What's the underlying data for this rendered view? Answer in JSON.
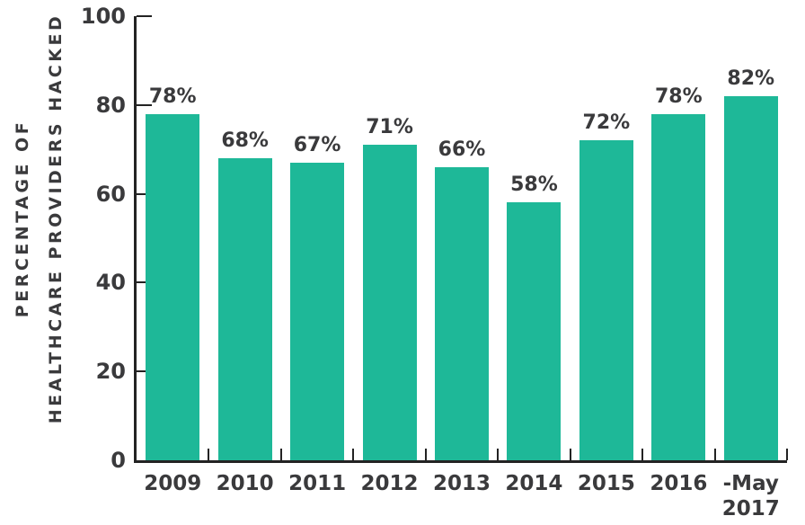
{
  "chart_data": {
    "type": "bar",
    "title": "",
    "ylabel_line1": "PERCENTAGE OF",
    "ylabel_line2": "HEALTHCARE PROVIDERS HACKED",
    "xlabel": "",
    "categories": [
      "2009",
      "2010",
      "2011",
      "2012",
      "2013",
      "2014",
      "2015",
      "2016",
      "-May\n2017"
    ],
    "values": [
      78,
      68,
      67,
      71,
      66,
      58,
      72,
      78,
      82
    ],
    "bar_labels": [
      "78%",
      "68%",
      "67%",
      "71%",
      "66%",
      "58%",
      "72%",
      "78%",
      "82%"
    ],
    "ylim": [
      0,
      100
    ],
    "yticks": [
      0,
      20,
      40,
      60,
      80,
      100
    ],
    "grid": false,
    "legend": false,
    "colors": {
      "bar": "#1eb898",
      "axis": "#232323",
      "text": "#3a3a3c",
      "background": "#ffffff"
    }
  }
}
